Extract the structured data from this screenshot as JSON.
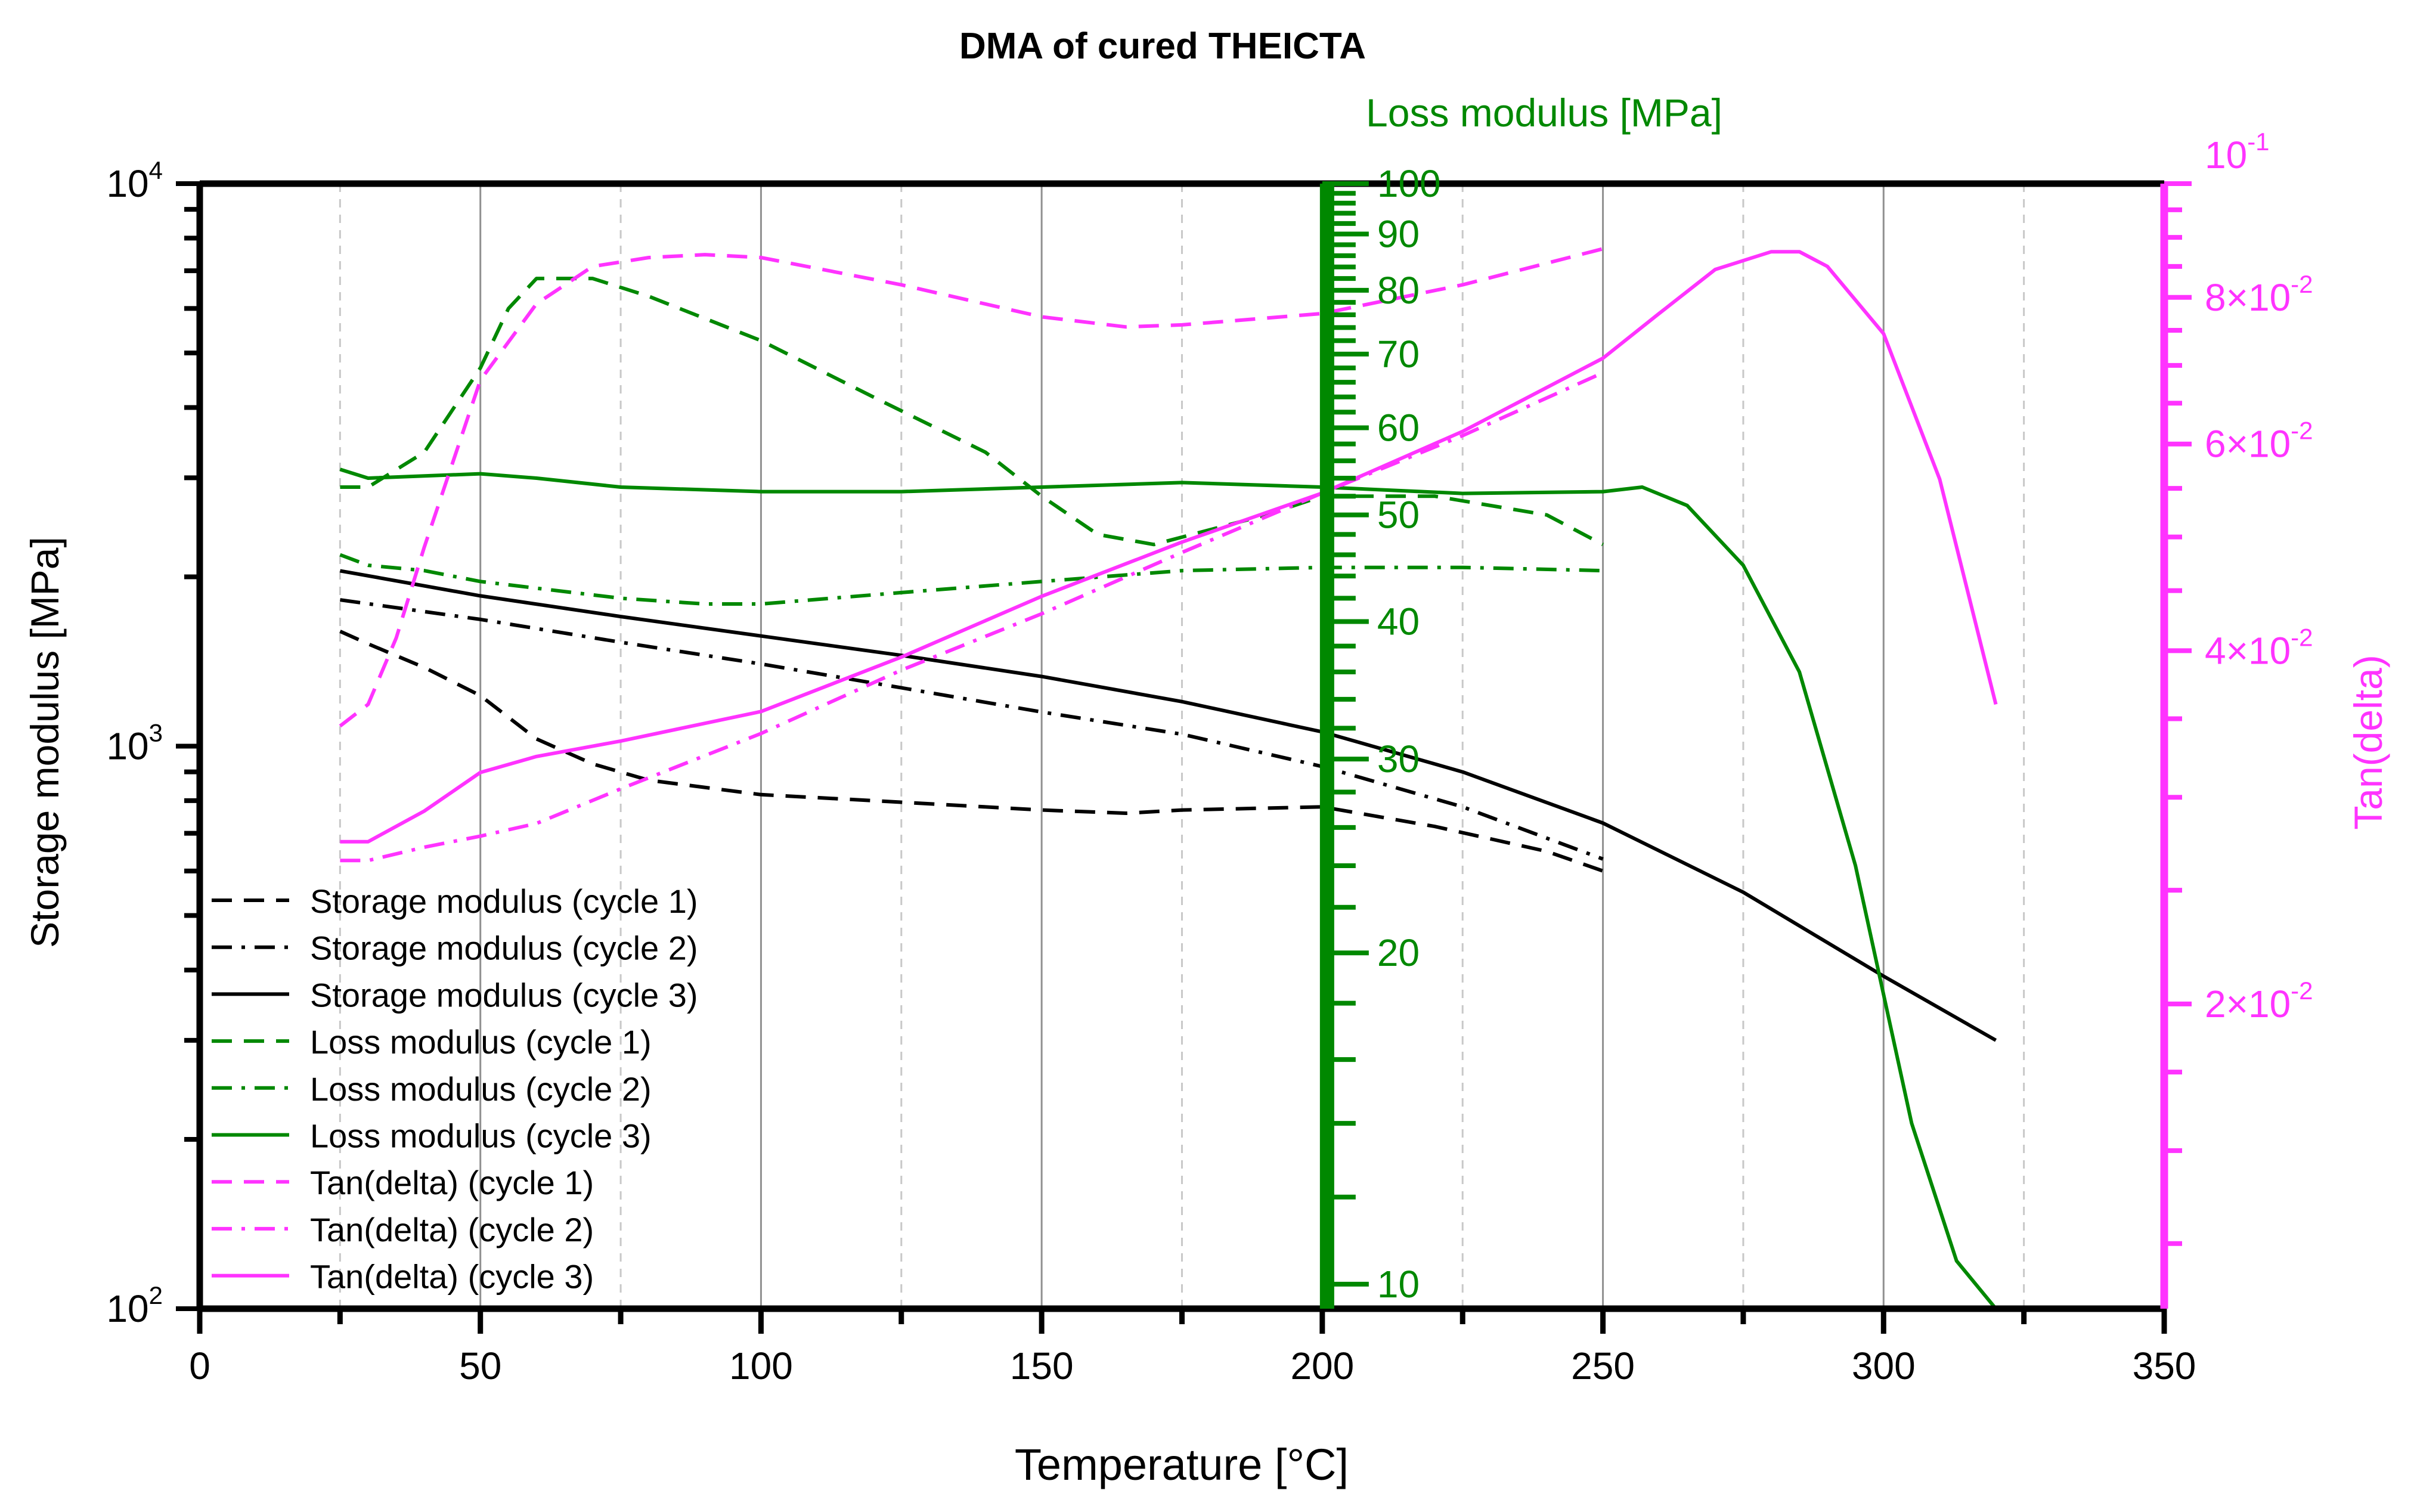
{
  "chart_data": {
    "type": "line",
    "title": "DMA of cured THEICTA",
    "xlabel": "Temperature [°C]",
    "xlim": [
      0,
      350
    ],
    "x_ticks": [
      "0",
      "50",
      "100",
      "150",
      "200",
      "250",
      "300",
      "350"
    ],
    "grid": "vertical",
    "legend_position": "bottom-left",
    "axes": {
      "left": {
        "label": "Storage modulus [MPa]",
        "scale": "log",
        "range": [
          100,
          10000
        ],
        "color": "#000000",
        "tick_labels": [
          {
            "base": "10",
            "exp": "2",
            "value": 100
          },
          {
            "base": "10",
            "exp": "3",
            "value": 1000
          },
          {
            "base": "10",
            "exp": "4",
            "value": 10000
          }
        ]
      },
      "middle": {
        "label": "Loss modulus [MPa]",
        "scale": "log",
        "range": [
          9.5,
          100
        ],
        "position_x": 200,
        "color": "#008800",
        "tick_labels": [
          "10",
          "20",
          "30",
          "40",
          "50",
          "60",
          "70",
          "80",
          "90",
          "100"
        ],
        "tick_values": [
          10,
          20,
          30,
          40,
          50,
          60,
          70,
          80,
          90,
          100
        ]
      },
      "right": {
        "label": "Tan(delta)",
        "scale": "log",
        "range": [
          0.011,
          0.1
        ],
        "color": "#ff33ff",
        "tick_labels": [
          {
            "base": "2×10",
            "exp": "-2",
            "value": 0.02
          },
          {
            "base": "4×10",
            "exp": "-2",
            "value": 0.04
          },
          {
            "base": "6×10",
            "exp": "-2",
            "value": 0.06
          },
          {
            "base": "8×10",
            "exp": "-2",
            "value": 0.08
          },
          {
            "base": "10",
            "exp": "-1",
            "value": 0.1
          }
        ]
      }
    },
    "series": [
      {
        "name": "Storage modulus (cycle 1)",
        "axis": "left",
        "color": "#000000",
        "style": "dash",
        "x": [
          25,
          30,
          40,
          50,
          60,
          70,
          80,
          100,
          120,
          150,
          165,
          175,
          200,
          220,
          240,
          250
        ],
        "y": [
          1600,
          1520,
          1380,
          1230,
          1030,
          930,
          870,
          820,
          800,
          770,
          760,
          770,
          780,
          720,
          650,
          600
        ]
      },
      {
        "name": "Storage modulus (cycle 2)",
        "axis": "left",
        "color": "#000000",
        "style": "dashdot",
        "x": [
          25,
          50,
          75,
          100,
          125,
          150,
          175,
          200,
          225,
          250
        ],
        "y": [
          1820,
          1680,
          1530,
          1400,
          1270,
          1150,
          1050,
          920,
          780,
          630
        ]
      },
      {
        "name": "Storage modulus (cycle 3)",
        "axis": "left",
        "color": "#000000",
        "style": "solid",
        "x": [
          25,
          50,
          75,
          100,
          125,
          150,
          175,
          200,
          225,
          250,
          275,
          300,
          320
        ],
        "y": [
          2050,
          1850,
          1700,
          1570,
          1450,
          1330,
          1200,
          1060,
          900,
          730,
          550,
          390,
          300
        ]
      },
      {
        "name": "Loss modulus (cycle 1)",
        "axis": "middle",
        "color": "#008800",
        "style": "dash",
        "x": [
          25,
          30,
          40,
          50,
          55,
          60,
          70,
          80,
          100,
          120,
          140,
          150,
          160,
          170,
          190,
          200,
          220,
          240,
          250
        ],
        "y": [
          53,
          53,
          57,
          68,
          77,
          82,
          82,
          79,
          72,
          64,
          57,
          52,
          48,
          47,
          50,
          52,
          52,
          50,
          47
        ]
      },
      {
        "name": "Loss modulus (cycle 2)",
        "axis": "middle",
        "color": "#008800",
        "style": "dashdot",
        "x": [
          25,
          30,
          40,
          50,
          75,
          90,
          100,
          125,
          150,
          175,
          200,
          225,
          250
        ],
        "y": [
          46,
          45,
          44.5,
          43.5,
          42,
          41.5,
          41.5,
          42.5,
          43.5,
          44.5,
          44.8,
          44.8,
          44.5
        ]
      },
      {
        "name": "Loss modulus (cycle 3)",
        "axis": "middle",
        "color": "#008800",
        "style": "solid",
        "x": [
          25,
          30,
          50,
          60,
          75,
          100,
          125,
          150,
          175,
          200,
          225,
          250,
          257,
          265,
          275,
          285,
          295,
          305,
          313,
          320
        ],
        "y": [
          55,
          54,
          54.5,
          54,
          53,
          52.5,
          52.5,
          53,
          53.5,
          53,
          52.3,
          52.5,
          53,
          51,
          45,
          36,
          24,
          14,
          10.5,
          9.5
        ]
      },
      {
        "name": "Tan(delta) (cycle 1)",
        "axis": "right",
        "color": "#ff33ff",
        "style": "dash",
        "x": [
          25,
          30,
          35,
          40,
          50,
          60,
          70,
          80,
          90,
          100,
          125,
          150,
          165,
          175,
          200,
          225,
          250
        ],
        "y": [
          0.0345,
          0.036,
          0.041,
          0.049,
          0.068,
          0.079,
          0.085,
          0.0865,
          0.087,
          0.0865,
          0.082,
          0.077,
          0.0755,
          0.0758,
          0.0775,
          0.082,
          0.088
        ]
      },
      {
        "name": "Tan(delta) (cycle 2)",
        "axis": "right",
        "color": "#ff33ff",
        "style": "dashdot",
        "x": [
          25,
          30,
          40,
          50,
          60,
          75,
          100,
          125,
          150,
          175,
          200,
          225,
          250
        ],
        "y": [
          0.0265,
          0.0265,
          0.0272,
          0.0278,
          0.0285,
          0.0305,
          0.034,
          0.0385,
          0.043,
          0.0485,
          0.0545,
          0.061,
          0.069
        ]
      },
      {
        "name": "Tan(delta) (cycle 3)",
        "axis": "right",
        "color": "#ff33ff",
        "style": "solid",
        "x": [
          25,
          30,
          40,
          50,
          60,
          75,
          100,
          125,
          150,
          175,
          200,
          225,
          250,
          260,
          270,
          280,
          285,
          290,
          300,
          310,
          320
        ],
        "y": [
          0.0275,
          0.0275,
          0.0292,
          0.0315,
          0.0325,
          0.0335,
          0.0355,
          0.0395,
          0.0445,
          0.0495,
          0.0545,
          0.0615,
          0.071,
          0.0775,
          0.0845,
          0.0875,
          0.0875,
          0.085,
          0.0745,
          0.056,
          0.036
        ]
      }
    ]
  }
}
